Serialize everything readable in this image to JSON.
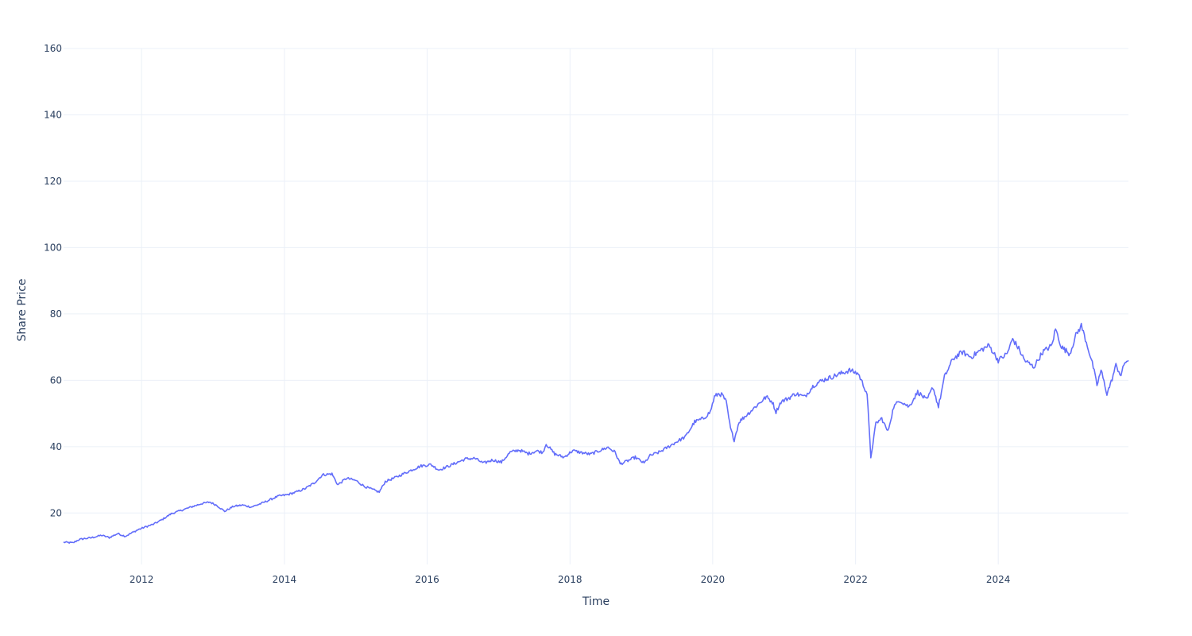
{
  "chart_data": {
    "type": "line",
    "xlabel": "Time",
    "ylabel": "Share Price",
    "xlim": [
      "2010-11-28",
      "2025-10-28"
    ],
    "ylim": [
      4.5,
      160
    ],
    "grid": true,
    "colors": {
      "line": "#636efa",
      "grid": "#ebf0f8",
      "text": "#2a3f5f"
    },
    "x_ticks": [
      "2012",
      "2014",
      "2016",
      "2018",
      "2020",
      "2022",
      "2024"
    ],
    "y_ticks": [
      "20",
      "40",
      "60",
      "80",
      "100",
      "120",
      "140",
      "160"
    ],
    "series": [
      {
        "points": [
          [
            "2010-11-28",
            11.2
          ],
          [
            "2011-01-15",
            11.0
          ],
          [
            "2011-02-15",
            12.0
          ],
          [
            "2011-03-15",
            12.3
          ],
          [
            "2011-04-15",
            12.5
          ],
          [
            "2011-05-15",
            12.9
          ],
          [
            "2011-06-10",
            13.3
          ],
          [
            "2011-07-20",
            12.6
          ],
          [
            "2011-09-01",
            13.8
          ],
          [
            "2011-10-10",
            13.0
          ],
          [
            "2011-11-15",
            14.1
          ],
          [
            "2011-12-15",
            15.0
          ],
          [
            "2012-01-20",
            15.8
          ],
          [
            "2012-03-01",
            16.6
          ],
          [
            "2012-04-15",
            18.0
          ],
          [
            "2012-06-01",
            19.8
          ],
          [
            "2012-08-01",
            21.0
          ],
          [
            "2012-09-15",
            21.9
          ],
          [
            "2012-11-01",
            22.8
          ],
          [
            "2012-12-15",
            23.3
          ],
          [
            "2013-01-20",
            22.3
          ],
          [
            "2013-03-01",
            20.5
          ],
          [
            "2013-04-15",
            22.0
          ],
          [
            "2013-06-01",
            22.4
          ],
          [
            "2013-07-15",
            21.8
          ],
          [
            "2013-09-01",
            22.8
          ],
          [
            "2013-10-15",
            23.9
          ],
          [
            "2013-12-01",
            25.1
          ],
          [
            "2014-01-15",
            25.5
          ],
          [
            "2014-03-01",
            26.3
          ],
          [
            "2014-04-15",
            27.3
          ],
          [
            "2014-06-01",
            29.0
          ],
          [
            "2014-07-15",
            31.5
          ],
          [
            "2014-09-01",
            31.8
          ],
          [
            "2014-10-01",
            28.5
          ],
          [
            "2014-11-15",
            30.5
          ],
          [
            "2015-01-01",
            29.8
          ],
          [
            "2015-02-15",
            28.0
          ],
          [
            "2015-04-01",
            27.0
          ],
          [
            "2015-05-01",
            26.3
          ],
          [
            "2015-06-01",
            29.5
          ],
          [
            "2015-07-15",
            30.5
          ],
          [
            "2015-09-01",
            31.8
          ],
          [
            "2015-10-15",
            33.0
          ],
          [
            "2015-12-01",
            34.2
          ],
          [
            "2016-01-20",
            34.6
          ],
          [
            "2016-03-01",
            33.0
          ],
          [
            "2016-04-15",
            34.0
          ],
          [
            "2016-06-01",
            35.2
          ],
          [
            "2016-07-15",
            36.3
          ],
          [
            "2016-09-01",
            36.5
          ],
          [
            "2016-10-15",
            35.0
          ],
          [
            "2016-12-01",
            36.0
          ],
          [
            "2017-01-15",
            35.3
          ],
          [
            "2017-03-01",
            38.3
          ],
          [
            "2017-04-15",
            39.0
          ],
          [
            "2017-06-01",
            37.9
          ],
          [
            "2017-07-15",
            38.7
          ],
          [
            "2017-08-15",
            38.3
          ],
          [
            "2017-09-01",
            40.8
          ],
          [
            "2017-10-15",
            37.8
          ],
          [
            "2017-12-01",
            36.8
          ],
          [
            "2018-01-15",
            38.8
          ],
          [
            "2018-03-01",
            38.2
          ],
          [
            "2018-04-15",
            37.7
          ],
          [
            "2018-06-01",
            38.8
          ],
          [
            "2018-07-15",
            39.8
          ],
          [
            "2018-08-20",
            38.3
          ],
          [
            "2018-09-15",
            34.8
          ],
          [
            "2018-10-15",
            35.5
          ],
          [
            "2018-12-01",
            36.8
          ],
          [
            "2019-01-15",
            35.0
          ],
          [
            "2019-02-15",
            37.3
          ],
          [
            "2019-04-01",
            38.3
          ],
          [
            "2019-05-15",
            39.8
          ],
          [
            "2019-07-01",
            41.5
          ],
          [
            "2019-08-15",
            43.0
          ],
          [
            "2019-10-01",
            47.5
          ],
          [
            "2019-11-15",
            48.5
          ],
          [
            "2019-12-20",
            50.5
          ],
          [
            "2020-01-10",
            55.0
          ],
          [
            "2020-02-01",
            56.0
          ],
          [
            "2020-02-20",
            55.5
          ],
          [
            "2020-03-10",
            53.5
          ],
          [
            "2020-04-01",
            45.5
          ],
          [
            "2020-04-20",
            42.0
          ],
          [
            "2020-05-15",
            47.5
          ],
          [
            "2020-07-01",
            50.0
          ],
          [
            "2020-08-15",
            52.5
          ],
          [
            "2020-10-01",
            55.0
          ],
          [
            "2020-11-01",
            53.5
          ],
          [
            "2020-11-20",
            50.5
          ],
          [
            "2020-12-15",
            53.5
          ],
          [
            "2021-01-20",
            54.5
          ],
          [
            "2021-03-01",
            56.0
          ],
          [
            "2021-04-15",
            55.0
          ],
          [
            "2021-06-01",
            58.5
          ],
          [
            "2021-07-15",
            60.0
          ],
          [
            "2021-09-01",
            61.0
          ],
          [
            "2021-10-15",
            62.0
          ],
          [
            "2021-12-01",
            63.0
          ],
          [
            "2022-01-15",
            62.0
          ],
          [
            "2022-03-01",
            56.0
          ],
          [
            "2022-03-20",
            36.8
          ],
          [
            "2022-04-15",
            47.0
          ],
          [
            "2022-05-15",
            48.5
          ],
          [
            "2022-06-15",
            44.5
          ],
          [
            "2022-07-15",
            52.0
          ],
          [
            "2022-08-15",
            54.0
          ],
          [
            "2022-10-01",
            52.0
          ],
          [
            "2022-11-15",
            56.5
          ],
          [
            "2023-01-01",
            54.0
          ],
          [
            "2023-02-01",
            58.0
          ],
          [
            "2023-03-01",
            52.0
          ],
          [
            "2023-04-01",
            61.0
          ],
          [
            "2023-05-15",
            66.5
          ],
          [
            "2023-07-01",
            68.5
          ],
          [
            "2023-08-15",
            67.0
          ],
          [
            "2023-10-01",
            69.0
          ],
          [
            "2023-11-15",
            70.5
          ],
          [
            "2024-01-01",
            66.0
          ],
          [
            "2024-02-15",
            68.0
          ],
          [
            "2024-03-15",
            72.5
          ],
          [
            "2024-04-15",
            69.5
          ],
          [
            "2024-05-15",
            66.0
          ],
          [
            "2024-07-01",
            64.0
          ],
          [
            "2024-08-15",
            68.5
          ],
          [
            "2024-10-01",
            70.5
          ],
          [
            "2024-10-20",
            75.5
          ],
          [
            "2024-11-20",
            70.0
          ],
          [
            "2025-01-01",
            68.0
          ],
          [
            "2025-02-01",
            73.5
          ],
          [
            "2025-03-01",
            76.5
          ],
          [
            "2025-04-01",
            70.5
          ],
          [
            "2025-05-01",
            64.0
          ],
          [
            "2025-05-20",
            58.5
          ],
          [
            "2025-06-10",
            63.0
          ],
          [
            "2025-07-10",
            56.0
          ],
          [
            "2025-08-01",
            59.5
          ],
          [
            "2025-08-25",
            64.5
          ],
          [
            "2025-09-20",
            61.5
          ],
          [
            "2025-10-10",
            65.5
          ],
          [
            "2025-10-28",
            66.0
          ]
        ]
      }
    ]
  }
}
